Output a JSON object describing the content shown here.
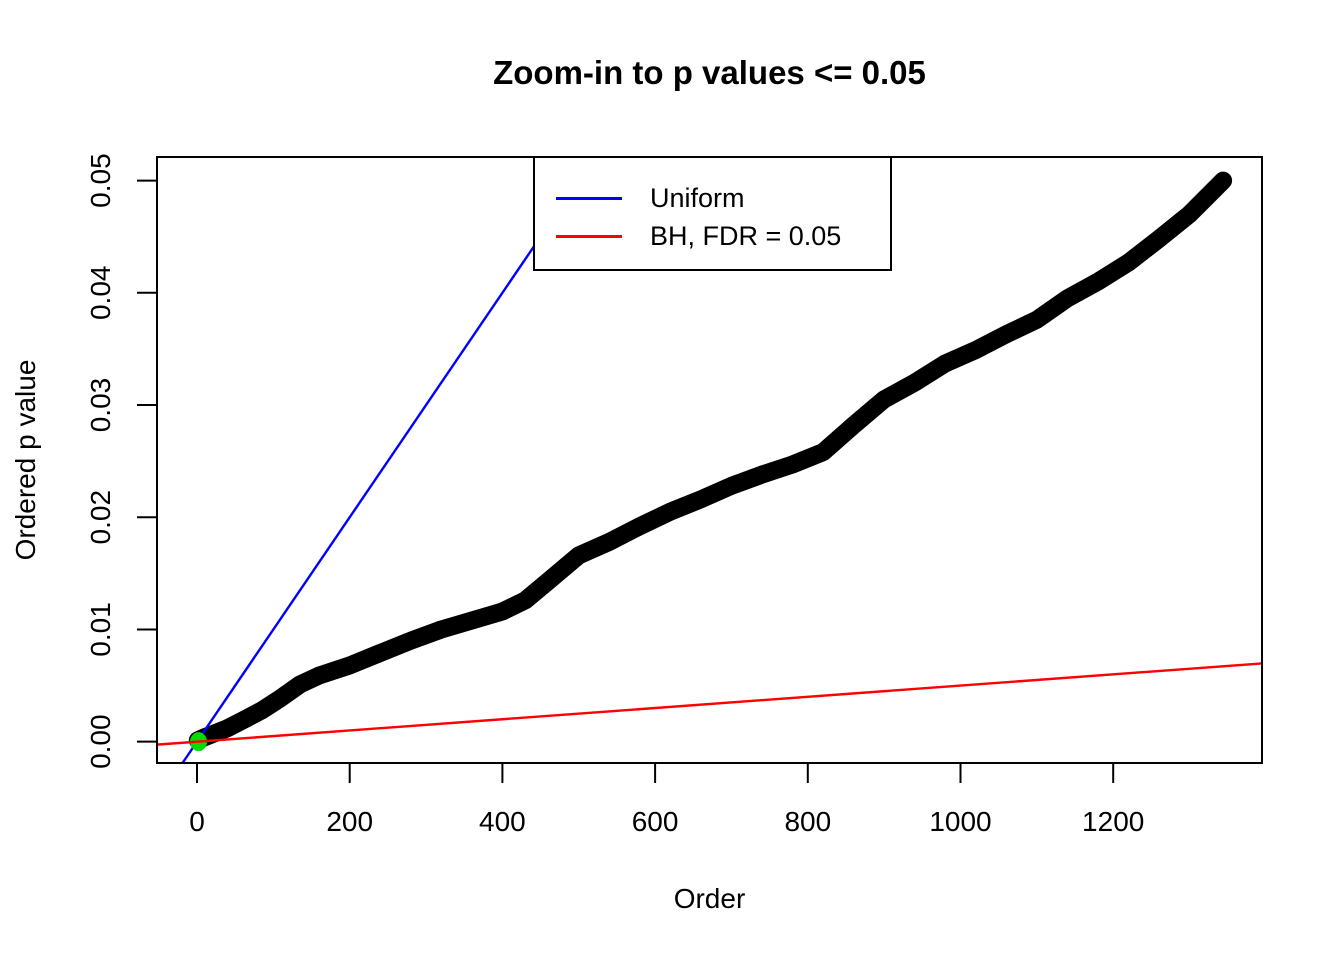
{
  "title": "Zoom-in to p values <= 0.05",
  "axes": {
    "x": {
      "label": "Order",
      "tick_values": [
        0,
        200,
        400,
        600,
        800,
        1000,
        1200
      ],
      "tick_labels": [
        "0",
        "200",
        "400",
        "600",
        "800",
        "1000",
        "1200"
      ]
    },
    "y": {
      "label": "Ordered p value",
      "tick_values": [
        0,
        0.01,
        0.02,
        0.03,
        0.04,
        0.05
      ],
      "tick_labels": [
        "0.00",
        "0.01",
        "0.02",
        "0.03",
        "0.04",
        "0.05"
      ]
    }
  },
  "legend": {
    "position": "top",
    "items": [
      {
        "label": "Uniform",
        "color": "#0000FF"
      },
      {
        "label": "BH, FDR = 0.05",
        "color": "#FF0000"
      }
    ]
  },
  "colors": {
    "points": "#000000",
    "uniform_line": "#0000FF",
    "bh_line": "#FF0000",
    "significant_point": "#00DB00",
    "frame": "#000000",
    "background": "#FFFFFF"
  },
  "chart_data": {
    "type": "scatter",
    "title": "Zoom-in to p values <= 0.05",
    "xlabel": "Order",
    "ylabel": "Ordered p value",
    "xlim": [
      -52.4,
      1394.9
    ],
    "ylim": [
      -0.0019,
      0.0521
    ],
    "grid": false,
    "legend_position": "top",
    "series": [
      {
        "name": "ordered_p_values",
        "color": "#000000",
        "style": "thick-point-band",
        "points": [
          [
            1,
            0.00012
          ],
          [
            10,
            0.0004
          ],
          [
            25,
            0.0008
          ],
          [
            40,
            0.0012
          ],
          [
            60,
            0.0019
          ],
          [
            85,
            0.0028
          ],
          [
            110,
            0.0039
          ],
          [
            135,
            0.0051
          ],
          [
            160,
            0.0059
          ],
          [
            200,
            0.0068
          ],
          [
            240,
            0.0079
          ],
          [
            280,
            0.009
          ],
          [
            320,
            0.01
          ],
          [
            360,
            0.0108
          ],
          [
            400,
            0.0116
          ],
          [
            430,
            0.0126
          ],
          [
            460,
            0.0143
          ],
          [
            500,
            0.0166
          ],
          [
            540,
            0.0178
          ],
          [
            580,
            0.0192
          ],
          [
            620,
            0.0205
          ],
          [
            660,
            0.0216
          ],
          [
            700,
            0.0228
          ],
          [
            740,
            0.0238
          ],
          [
            780,
            0.0247
          ],
          [
            820,
            0.0258
          ],
          [
            860,
            0.0282
          ],
          [
            900,
            0.0305
          ],
          [
            940,
            0.032
          ],
          [
            980,
            0.0337
          ],
          [
            1020,
            0.0349
          ],
          [
            1060,
            0.0363
          ],
          [
            1100,
            0.0376
          ],
          [
            1140,
            0.0395
          ],
          [
            1180,
            0.041
          ],
          [
            1220,
            0.0427
          ],
          [
            1260,
            0.0448
          ],
          [
            1300,
            0.047
          ],
          [
            1344,
            0.05
          ]
        ]
      },
      {
        "name": "uniform_line",
        "label": "Uniform",
        "color": "#0000FF",
        "style": "line",
        "slope": 0.0001,
        "intercept": 0
      },
      {
        "name": "bh_line",
        "label": "BH, FDR = 0.05",
        "color": "#FF0000",
        "style": "line",
        "slope": 5e-06,
        "intercept": 0
      },
      {
        "name": "significant_points",
        "color": "#00DB00",
        "style": "point",
        "points": [
          [
            2,
            0.0
          ]
        ]
      }
    ]
  }
}
